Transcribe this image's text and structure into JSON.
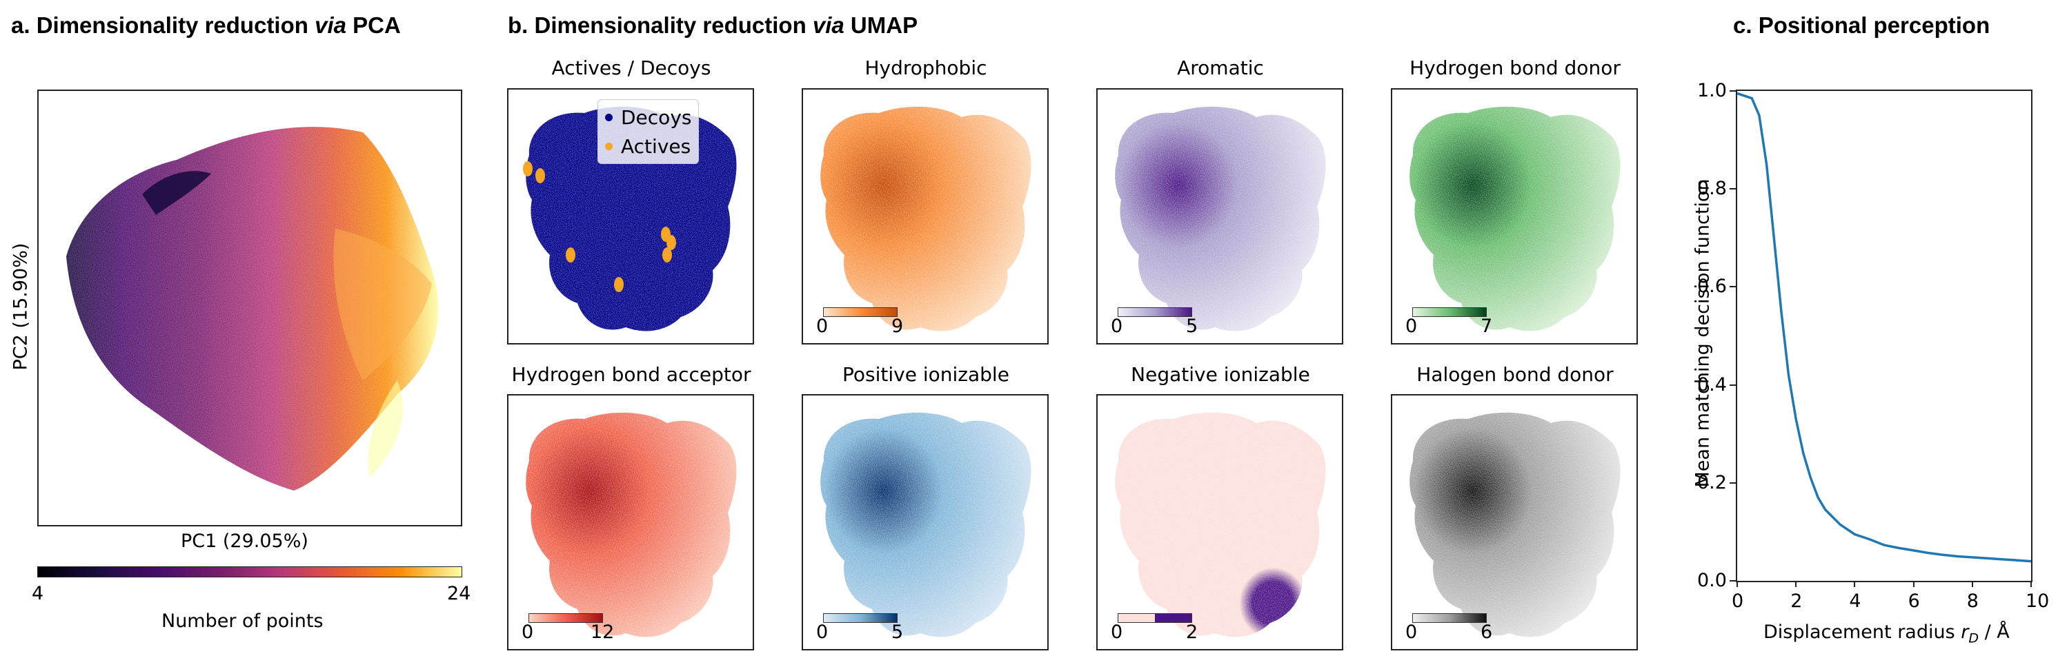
{
  "panel_a": {
    "title_prefix": "a. Dimensionality reduction ",
    "title_italic": "via",
    "title_suffix": " PCA",
    "xlabel": "PC1 (29.05%)",
    "ylabel": "PC2 (15.90%)",
    "colorbar_min": "4",
    "colorbar_max": "24",
    "colorbar_label": "Number of points"
  },
  "panel_b": {
    "title_prefix": "b. Dimensionality reduction ",
    "title_italic": "via",
    "title_suffix": " UMAP",
    "legend": {
      "decoys": {
        "label": "Decoys",
        "color": "#00008b"
      },
      "actives": {
        "label": "Actives",
        "color": "#f5a623"
      }
    },
    "subplots": [
      {
        "title": "Actives / Decoys",
        "cmin": "",
        "cmax": "",
        "colors": []
      },
      {
        "title": "Hydrophobic",
        "cmin": "0",
        "cmax": "9",
        "colors": [
          "#fde5cc",
          "#f98c3a",
          "#c54a06"
        ]
      },
      {
        "title": "Aromatic",
        "cmin": "0",
        "cmax": "5",
        "colors": [
          "#f1eff7",
          "#a99fcd",
          "#4a1486"
        ]
      },
      {
        "title": "Hydrogen bond donor",
        "cmin": "0",
        "cmax": "7",
        "colors": [
          "#e6f5e1",
          "#6abd6f",
          "#00441b"
        ]
      },
      {
        "title": "Hydrogen bond acceptor",
        "cmin": "0",
        "cmax": "12",
        "colors": [
          "#fdd3c2",
          "#f0604a",
          "#a50f15"
        ]
      },
      {
        "title": "Positive ionizable",
        "cmin": "0",
        "cmax": "5",
        "colors": [
          "#ddeaf6",
          "#80b6d9",
          "#08306b"
        ]
      },
      {
        "title": "Negative ionizable",
        "cmin": "0",
        "cmax": "2",
        "colors": [
          "#fde0dc",
          "#fde0dc",
          "#4a1486"
        ]
      },
      {
        "title": "Halogen bond donor",
        "cmin": "0",
        "cmax": "6",
        "colors": [
          "#f0f0f0",
          "#9e9e9e",
          "#111111"
        ]
      }
    ]
  },
  "panel_c": {
    "title": "c. Positional perception",
    "xlabel_text": "Displacement radius ",
    "xlabel_sym": "r",
    "xlabel_sub": "D",
    "xlabel_unit": " / Å",
    "ylabel": "Mean matching decision function",
    "line_color": "#1f77b4"
  },
  "chart_data": [
    {
      "type": "scatter",
      "title": "a. Dimensionality reduction via PCA",
      "xlabel": "PC1 (29.05%)",
      "ylabel": "PC2 (15.90%)",
      "colorbar": {
        "label": "Number of points",
        "range": [
          4,
          24
        ],
        "colormap": "inferno"
      }
    },
    {
      "type": "scatter",
      "title": "b. Dimensionality reduction via UMAP",
      "subplots": [
        "Actives / Decoys",
        "Hydrophobic",
        "Aromatic",
        "Hydrogen bond donor",
        "Hydrogen bond acceptor",
        "Positive ionizable",
        "Negative ionizable",
        "Halogen bond donor"
      ],
      "colorbar_ranges": [
        [
          0,
          9
        ],
        [
          0,
          5
        ],
        [
          0,
          7
        ],
        [
          0,
          12
        ],
        [
          0,
          5
        ],
        [
          0,
          2
        ],
        [
          0,
          6
        ]
      ],
      "legend": [
        "Decoys",
        "Actives"
      ]
    },
    {
      "type": "line",
      "title": "c. Positional perception",
      "xlabel": "Displacement radius r_D / Å",
      "ylabel": "Mean matching decision function",
      "xlim": [
        0,
        10
      ],
      "ylim": [
        0.0,
        1.0
      ],
      "xticks": [
        0,
        2,
        4,
        6,
        8,
        10
      ],
      "yticks": [
        0.0,
        0.2,
        0.4,
        0.6,
        0.8,
        1.0
      ],
      "x": [
        0,
        0.25,
        0.5,
        0.75,
        1.0,
        1.25,
        1.5,
        1.75,
        2.0,
        2.25,
        2.5,
        2.75,
        3.0,
        3.5,
        4.0,
        4.5,
        5.0,
        5.5,
        6.0,
        6.5,
        7.0,
        7.5,
        8.0,
        8.5,
        9.0,
        9.5,
        10.0
      ],
      "y": [
        0.995,
        0.99,
        0.985,
        0.95,
        0.85,
        0.7,
        0.55,
        0.42,
        0.33,
        0.26,
        0.21,
        0.17,
        0.145,
        0.115,
        0.095,
        0.085,
        0.073,
        0.067,
        0.062,
        0.057,
        0.053,
        0.05,
        0.048,
        0.046,
        0.044,
        0.042,
        0.04
      ]
    }
  ]
}
